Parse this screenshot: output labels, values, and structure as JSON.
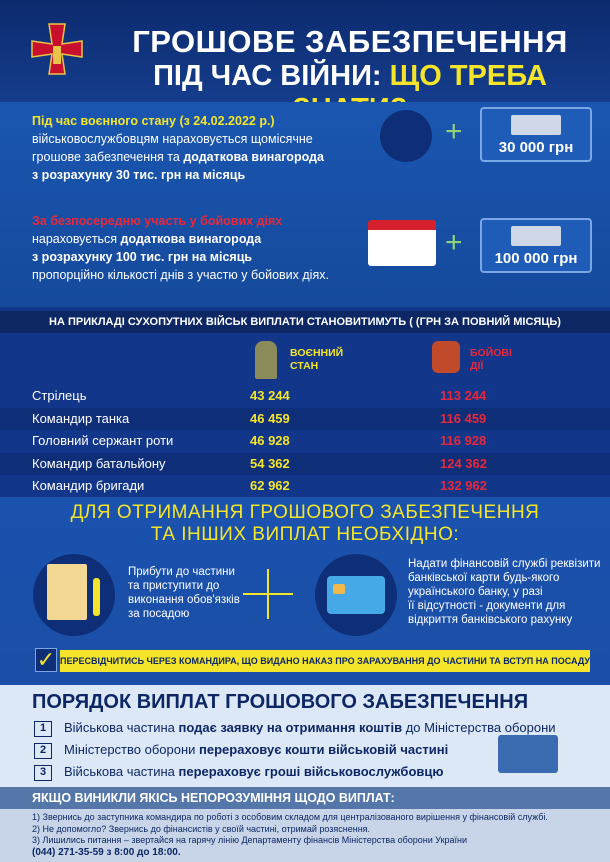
{
  "header": {
    "title_line1": "ГРОШОВЕ ЗАБЕЗПЕЧЕННЯ",
    "title_line2_a": "ПІД ЧАС ВІЙНИ:",
    "title_line2_b": "ЩО ТРЕБА ЗНАТИ?",
    "emblem_icon": "armed-forces-cross-emblem"
  },
  "section1": {
    "block1": {
      "highlight": "Під час воєнного стану (з 24.02.2022 р.)",
      "line1": "військовослужбовцям нараховується щомісячне",
      "line2_plain": "грошове забезпечення та ",
      "line2_bold": "додаткова винагорода",
      "line3": "з розрахунку 30 тис. грн на місяць",
      "amount": "30 000 грн"
    },
    "block2": {
      "highlight": "За безпосередню участь у бойових діях",
      "line1_plain": "нараховується ",
      "line1_bold": "додаткова винагорода",
      "line2": "з розрахунку 100 тис. грн на місяць",
      "line3": "пропорційно кількості днів з участю у бойових діях.",
      "amount": "100 000 грн"
    }
  },
  "table": {
    "caption": "НА ПРИКЛАДІ СУХОПУТНИХ ВІЙСЬК ВИПЛАТИ СТАНОВИТИМУТЬ ( (ГРН ЗА ПОВНИЙ МІСЯЦЬ)",
    "col1": [
      "ВОЄННИЙ",
      "СТАН"
    ],
    "col2": [
      "БОЙОВІ",
      "ДІЇ"
    ],
    "rows": [
      {
        "label": "Стрілець",
        "v1": "43 244",
        "v2": "113 244"
      },
      {
        "label": "Командир танка",
        "v1": "46 459",
        "v2": "116 459"
      },
      {
        "label": "Головний сержант роти",
        "v1": "46 928",
        "v2": "116 928"
      },
      {
        "label": "Командир батальйону",
        "v1": "54 362",
        "v2": "124 362"
      },
      {
        "label": "Командир бригади",
        "v1": "62 962",
        "v2": "132 962"
      }
    ]
  },
  "requirements": {
    "heading1": "ДЛЯ ОТРИМАННЯ ГРОШОВОГО ЗАБЕЗПЕЧЕННЯ",
    "heading2": "ТА ІНШИХ ВИПЛАТ НЕОБХІДНО:",
    "left": [
      "Прибути до частини",
      "та приступити до",
      "виконання обов'язків",
      "за посадою"
    ],
    "right": [
      "Надати  фінансовій службі реквізити",
      "банківської карти будь-якого",
      "українського банку, у разі",
      "її відсутності - документи для",
      "відкриття банківського рахунку"
    ],
    "check_note": "ПЕРЕСВІДЧИТИСЬ ЧЕРЕЗ КОМАНДИРА, ЩО ВИДАНО НАКАЗ ПРО ЗАРАХУВАННЯ ДО ЧАСТИНИ ТА ВСТУП НА ПОСАДУ"
  },
  "order": {
    "title": "ПОРЯДОК ВИПЛАТ ГРОШОВОГО ЗАБЕЗПЕЧЕННЯ",
    "items": [
      {
        "n": "1",
        "a": "Військова частина ",
        "b": "подає заявку на отримання коштів",
        "c": " до Міністерства оборони"
      },
      {
        "n": "2",
        "a": "Міністерство оборони ",
        "b": "перераховує кошти військовій частині",
        "c": ""
      },
      {
        "n": "3",
        "a": "Військова частина ",
        "b": "перераховує гроші військовослужбовцю",
        "c": ""
      }
    ]
  },
  "issues": {
    "title": "ЯКЩО ВИНИКЛИ ЯКІСЬ НЕПОРОЗУМІННЯ ЩОДО ВИПЛАТ:",
    "lines": [
      "1)  Звернись до заступника командира по роботі з особовим складом для централізованого вирішення у фінансовій службі.",
      "2) Не допомогло? Звернись до фінансистів у своїй частині, отримай розяснення.",
      "3) Лишились питання – звертайся на гарячу лінію Департаменту фінансів Міністерства оборони України"
    ],
    "phone": "(044) 271-35-59 з 8:00 до 18:00."
  },
  "colors": {
    "navy": "#0c2763",
    "blue": "#1a52ae",
    "yellow": "#f5e52a",
    "red": "#e8283a"
  }
}
